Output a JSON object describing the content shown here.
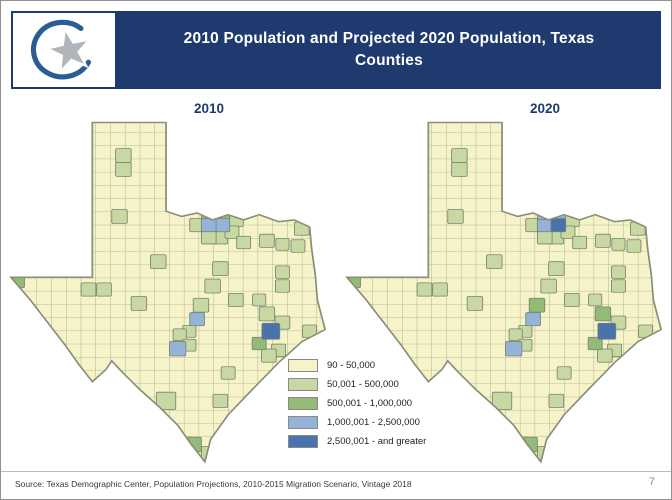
{
  "slide": {
    "title_line1": "2010 Population and Projected 2020 Population, Texas",
    "title_line2": "Counties",
    "source_text": "Source: Texas Demographic Center, Population Projections, 2010-2015 Migration Scenario, Vintage 2018",
    "page_number": "7"
  },
  "colors": {
    "header_bg": "#1e3a6e",
    "county_line": "#a3ab8e",
    "map_outline": "#8a8f7a",
    "cat1": "#f6f3c9",
    "cat2": "#c8d8a2",
    "cat3": "#93ba77",
    "cat4": "#95b3d7",
    "cat5": "#4a72ad"
  },
  "legend": {
    "items": [
      {
        "label": "90 - 50,000",
        "color": "#f6f3c9"
      },
      {
        "label": "50,001 - 500,000",
        "color": "#c8d8a2"
      },
      {
        "label": "500,001 - 1,000,000",
        "color": "#93ba77"
      },
      {
        "label": "1,000,001 - 2,500,000",
        "color": "#95b3d7"
      },
      {
        "label": "2,500,001 - and greater",
        "color": "#4a72ad"
      }
    ]
  },
  "maps": [
    {
      "label": "2010",
      "patches": [
        [
          30,
          10.5,
          4,
          "cat2"
        ],
        [
          30,
          14.5,
          4,
          "cat2"
        ],
        [
          29,
          28,
          4,
          "cat2"
        ],
        [
          45,
          23,
          4,
          "cat2"
        ],
        [
          39,
          41,
          4,
          "cat2"
        ],
        [
          25,
          49,
          3.8,
          "cat2"
        ],
        [
          21,
          49,
          3.8,
          "cat2"
        ],
        [
          34,
          53,
          4,
          "cat2"
        ],
        [
          55,
          24,
          4,
          "cat2"
        ],
        [
          59,
          29,
          3.8,
          "cat2"
        ],
        [
          55,
          34,
          3.8,
          "cat2"
        ],
        [
          52,
          34,
          3.8,
          "cat2"
        ],
        [
          49,
          30.5,
          3.8,
          "cat2"
        ],
        [
          58,
          32.5,
          3.6,
          "cat2"
        ],
        [
          61,
          35.5,
          3.6,
          "cat2"
        ],
        [
          67,
          35,
          3.8,
          "cat2"
        ],
        [
          71,
          36,
          3.4,
          "cat2"
        ],
        [
          75,
          36.5,
          3.6,
          "cat2"
        ],
        [
          76,
          31.5,
          3.8,
          "cat2"
        ],
        [
          71,
          44,
          3.6,
          "cat2"
        ],
        [
          71,
          48,
          3.6,
          "cat2"
        ],
        [
          55,
          43,
          4,
          "cat2"
        ],
        [
          53,
          48,
          4,
          "cat2"
        ],
        [
          59,
          52,
          3.8,
          "cat2"
        ],
        [
          50,
          53.5,
          4,
          "cat2"
        ],
        [
          47,
          61,
          3.4,
          "cat2"
        ],
        [
          44.5,
          62,
          3.4,
          "cat2"
        ],
        [
          47,
          65,
          3.4,
          "cat2"
        ],
        [
          67,
          56,
          4,
          "cat2"
        ],
        [
          71,
          58.5,
          3.8,
          "cat2"
        ],
        [
          78,
          61,
          3.6,
          "cat2"
        ],
        [
          70,
          66.5,
          3.6,
          "cat2"
        ],
        [
          67.5,
          68,
          3.8,
          "cat2"
        ],
        [
          57,
          73,
          3.6,
          "cat2"
        ],
        [
          55,
          81,
          3.8,
          "cat2"
        ],
        [
          41,
          81,
          5,
          "cat2"
        ],
        [
          52,
          96,
          3.8,
          "cat2"
        ],
        [
          65,
          52,
          3.4,
          "cat2"
        ],
        [
          2.5,
          46.5,
          4,
          "cat3"
        ],
        [
          55.5,
          27,
          3.8,
          "cat3"
        ],
        [
          52,
          27,
          3.8,
          "cat3"
        ],
        [
          48,
          93.5,
          4.2,
          "cat3"
        ],
        [
          65,
          64.5,
          3.6,
          "cat3"
        ],
        [
          55.5,
          30.5,
          3.8,
          "cat4"
        ],
        [
          52,
          30.5,
          3.8,
          "cat4"
        ],
        [
          44,
          66,
          4.2,
          "cat4"
        ],
        [
          49,
          57.5,
          3.8,
          "cat4"
        ],
        [
          68,
          61,
          4.6,
          "cat5"
        ]
      ]
    },
    {
      "label": "2020",
      "patches": [
        [
          30,
          10.5,
          4,
          "cat2"
        ],
        [
          30,
          14.5,
          4,
          "cat2"
        ],
        [
          29,
          28,
          4,
          "cat2"
        ],
        [
          45,
          23,
          4,
          "cat2"
        ],
        [
          39,
          41,
          4,
          "cat2"
        ],
        [
          25,
          49,
          3.8,
          "cat2"
        ],
        [
          21,
          49,
          3.8,
          "cat2"
        ],
        [
          34,
          53,
          4,
          "cat2"
        ],
        [
          55,
          24,
          4,
          "cat2"
        ],
        [
          59,
          29,
          3.8,
          "cat2"
        ],
        [
          55,
          34,
          3.8,
          "cat2"
        ],
        [
          52,
          34,
          3.8,
          "cat2"
        ],
        [
          49,
          30.5,
          3.8,
          "cat2"
        ],
        [
          58,
          32.5,
          3.6,
          "cat2"
        ],
        [
          61,
          35.5,
          3.6,
          "cat2"
        ],
        [
          67,
          35,
          3.8,
          "cat2"
        ],
        [
          71,
          36,
          3.4,
          "cat2"
        ],
        [
          75,
          36.5,
          3.6,
          "cat2"
        ],
        [
          76,
          31.5,
          3.8,
          "cat2"
        ],
        [
          71,
          44,
          3.6,
          "cat2"
        ],
        [
          71,
          48,
          3.6,
          "cat2"
        ],
        [
          55,
          43,
          4,
          "cat2"
        ],
        [
          53,
          48,
          4,
          "cat2"
        ],
        [
          59,
          52,
          3.8,
          "cat2"
        ],
        [
          47,
          61,
          3.4,
          "cat2"
        ],
        [
          44.5,
          62,
          3.4,
          "cat2"
        ],
        [
          47,
          65,
          3.4,
          "cat2"
        ],
        [
          71,
          58.5,
          3.8,
          "cat2"
        ],
        [
          78,
          61,
          3.6,
          "cat2"
        ],
        [
          70,
          66.5,
          3.6,
          "cat2"
        ],
        [
          67.5,
          68,
          3.8,
          "cat2"
        ],
        [
          57,
          73,
          3.6,
          "cat2"
        ],
        [
          55,
          81,
          3.8,
          "cat2"
        ],
        [
          41,
          81,
          5,
          "cat2"
        ],
        [
          52,
          96,
          3.8,
          "cat2"
        ],
        [
          65,
          52,
          3.4,
          "cat2"
        ],
        [
          2.5,
          46.5,
          4,
          "cat3"
        ],
        [
          48,
          93.5,
          4.2,
          "cat3"
        ],
        [
          65,
          64.5,
          3.6,
          "cat3"
        ],
        [
          67,
          56,
          4,
          "cat3"
        ],
        [
          50,
          53.5,
          4,
          "cat3"
        ],
        [
          52,
          30.5,
          3.8,
          "cat4"
        ],
        [
          44,
          66,
          4.2,
          "cat4"
        ],
        [
          49,
          57.5,
          3.8,
          "cat4"
        ],
        [
          55.5,
          27,
          3.8,
          "cat4"
        ],
        [
          52,
          27,
          3.8,
          "cat4"
        ],
        [
          68,
          61,
          4.6,
          "cat5"
        ],
        [
          55.5,
          30.5,
          3.8,
          "cat5"
        ]
      ]
    }
  ],
  "chart_data": {
    "type": "heatmap",
    "subtype": "choropleth-map",
    "title": "2010 Population and Projected 2020 Population, Texas Counties",
    "maps": [
      "2010",
      "2020"
    ],
    "region": "Texas counties",
    "legend_position": "bottom-center",
    "classes": [
      {
        "range": "90 - 50,000",
        "color": "#f6f3c9"
      },
      {
        "range": "50,001 - 500,000",
        "color": "#c8d8a2"
      },
      {
        "range": "500,001 - 1,000,000",
        "color": "#93ba77"
      },
      {
        "range": "1,000,001 - 2,500,000",
        "color": "#95b3d7"
      },
      {
        "range": "2,500,001 - and greater",
        "color": "#4a72ad"
      }
    ]
  }
}
